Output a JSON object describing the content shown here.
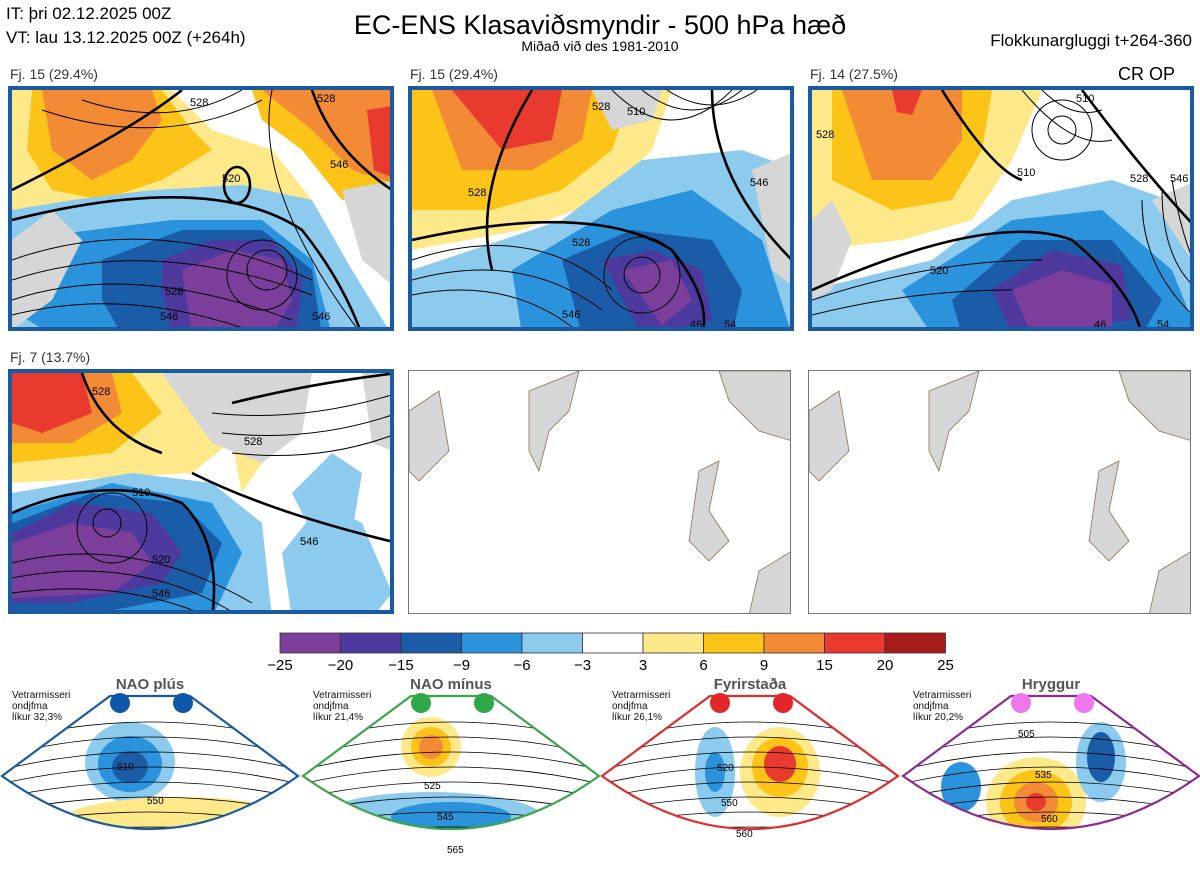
{
  "header": {
    "issue_time": "IT: þri 02.12.2025 00Z",
    "valid_time": "VT: lau 13.12.2025 00Z  (+264h)",
    "title": "EC-ENS Klasaviðsmyndir - 500 hPa hæð",
    "subtitle": "Miðað við des 1981-2010",
    "window": "Flokkunargluggi t+264-360"
  },
  "panels": [
    {
      "label": "Fj. 15 (29.4%)",
      "contour_labels": [
        "528",
        "520",
        "546",
        "528",
        "546",
        "546",
        "528"
      ]
    },
    {
      "label": "Fj. 15 (29.4%)",
      "contour_labels": [
        "528",
        "510",
        "528",
        "546",
        "528",
        "546",
        "46",
        "54"
      ]
    },
    {
      "label": "Fj. 14 (27.5%)",
      "contour_labels": [
        "528",
        "510",
        "510",
        "528",
        "546",
        "520",
        "46",
        "54"
      ]
    },
    {
      "label": "Fj. 7 (13.7%)",
      "contour_labels": [
        "528",
        "510",
        "528",
        "546",
        "546",
        "520"
      ]
    }
  ],
  "corner_tag": "CR OP",
  "colorbar": {
    "ticks": [
      "−25",
      "−20",
      "−15",
      "−9",
      "−6",
      "−3",
      "3",
      "6",
      "9",
      "15",
      "20",
      "25"
    ],
    "colors": [
      "#7b3f9b",
      "#4e3a9e",
      "#1a5ca8",
      "#2b93dc",
      "#8ccbee",
      "#ffffff",
      "#fde98a",
      "#fcc418",
      "#f38a35",
      "#e83a2e",
      "#a81b1b"
    ]
  },
  "regimes": [
    {
      "name": "NAO plús",
      "prob_lines": [
        "Vetrarmisseri",
        "ondjfma",
        "líkur 32,3%"
      ],
      "color": "#1a5aa0",
      "dot_color": "#0f57a8",
      "labels": [
        "510",
        "550"
      ]
    },
    {
      "name": "NAO mínus",
      "prob_lines": [
        "Vetrarmisseri",
        "ondjfma",
        "líkur 21,4%"
      ],
      "color": "#3aa648",
      "dot_color": "#2fa84a",
      "labels": [
        "525",
        "545",
        "565"
      ]
    },
    {
      "name": "Fyrirstaða",
      "prob_lines": [
        "Vetrarmisseri",
        "ondjfma",
        "líkur 26,1%"
      ],
      "color": "#e02b2b",
      "dot_color": "#e2262a",
      "labels": [
        "520",
        "550",
        "560"
      ]
    },
    {
      "name": "Hryggur",
      "prob_lines": [
        "Vetrarmisseri",
        "ondjfma",
        "líkur 20,2%"
      ],
      "color": "#8b2a8f",
      "dot_color": "#ee77ee",
      "labels": [
        "505",
        "535",
        "560"
      ]
    }
  ]
}
